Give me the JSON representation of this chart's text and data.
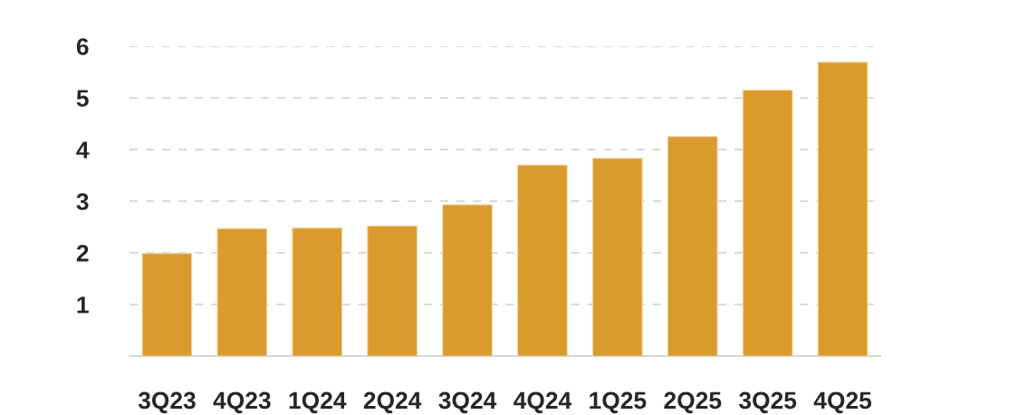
{
  "chart_data": {
    "type": "bar",
    "categories": [
      "3Q23",
      "4Q23",
      "1Q24",
      "2Q24",
      "3Q24",
      "4Q24",
      "1Q25",
      "2Q25",
      "3Q25",
      "4Q25"
    ],
    "values": [
      1.99,
      2.47,
      2.48,
      2.52,
      2.93,
      3.7,
      3.83,
      4.25,
      5.15,
      5.69
    ],
    "color": "#d99b2e",
    "ylim": [
      0,
      6
    ],
    "yticks": [
      {
        "value": 0,
        "label": null
      },
      1,
      2,
      3,
      4,
      5,
      6
    ],
    "grid": "y"
  }
}
